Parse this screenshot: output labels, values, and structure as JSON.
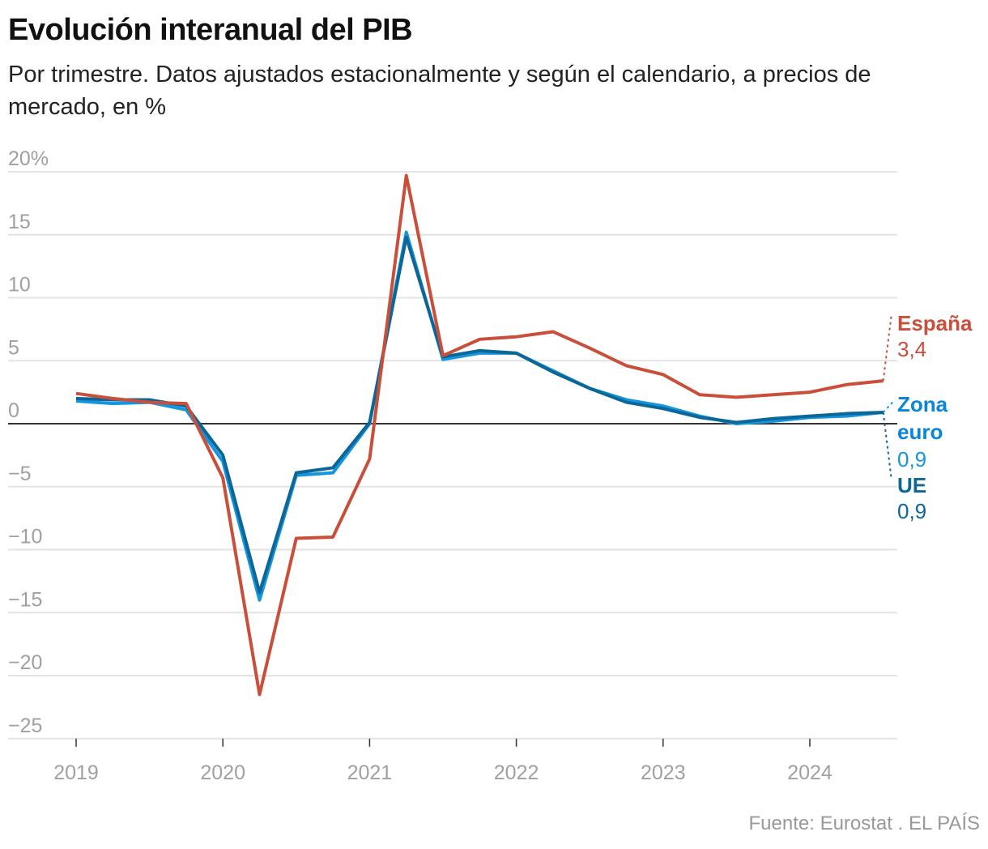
{
  "title": "Evolución interanual del PIB",
  "subtitle": "Por trimestre. Datos ajustados estacionalmente y según el calendario, a precios de mercado, en %",
  "source": "Fuente: Eurostat . EL PAÍS",
  "chart_data": {
    "type": "line",
    "title": "Evolución interanual del PIB",
    "subtitle": "Por trimestre. Datos ajustados estacionalmente y según el calendario, a precios de mercado, en %",
    "xlabel": "",
    "ylabel": "%",
    "ylim": [
      -25,
      20
    ],
    "yticks": [
      20,
      15,
      10,
      5,
      0,
      -5,
      -10,
      -15,
      -20,
      -25
    ],
    "ytick_labels": [
      "20%",
      "15",
      "10",
      "5",
      "0",
      "−5",
      "−10",
      "−15",
      "−20",
      "−25"
    ],
    "xticks": [
      "2019",
      "2020",
      "2021",
      "2022",
      "2023",
      "2024"
    ],
    "grid": true,
    "x": [
      "2019T1",
      "2019T2",
      "2019T3",
      "2019T4",
      "2020T1",
      "2020T2",
      "2020T3",
      "2020T4",
      "2021T1",
      "2021T2",
      "2021T3",
      "2021T4",
      "2022T1",
      "2022T2",
      "2022T3",
      "2022T4",
      "2023T1",
      "2023T2",
      "2023T3",
      "2023T4",
      "2024T1",
      "2024T2",
      "2024T3"
    ],
    "series": [
      {
        "name": "España",
        "color": "#c94f3b",
        "label_value": "3,4",
        "values": [
          2.4,
          2.0,
          1.7,
          1.6,
          -4.3,
          -21.5,
          -9.1,
          -9.0,
          -2.8,
          19.7,
          5.4,
          6.7,
          6.9,
          7.3,
          6.0,
          4.6,
          3.9,
          2.3,
          2.1,
          2.3,
          2.5,
          3.1,
          3.4
        ]
      },
      {
        "name": "Zona euro",
        "color": "#1495e0",
        "label_value": "0,9",
        "values": [
          1.8,
          1.6,
          1.7,
          1.1,
          -3.0,
          -14.0,
          -4.1,
          -3.9,
          0.0,
          15.2,
          5.1,
          5.6,
          5.6,
          4.2,
          2.8,
          1.9,
          1.4,
          0.6,
          0.0,
          0.2,
          0.5,
          0.6,
          0.9
        ]
      },
      {
        "name": "UE",
        "color": "#0c6797",
        "label_value": "0,9",
        "values": [
          2.0,
          1.9,
          1.9,
          1.4,
          -2.5,
          -13.4,
          -3.9,
          -3.5,
          0.1,
          14.8,
          5.3,
          5.8,
          5.6,
          4.1,
          2.8,
          1.7,
          1.2,
          0.5,
          0.1,
          0.4,
          0.6,
          0.8,
          0.9
        ]
      }
    ],
    "legend": "right, inline labels at line ends"
  }
}
